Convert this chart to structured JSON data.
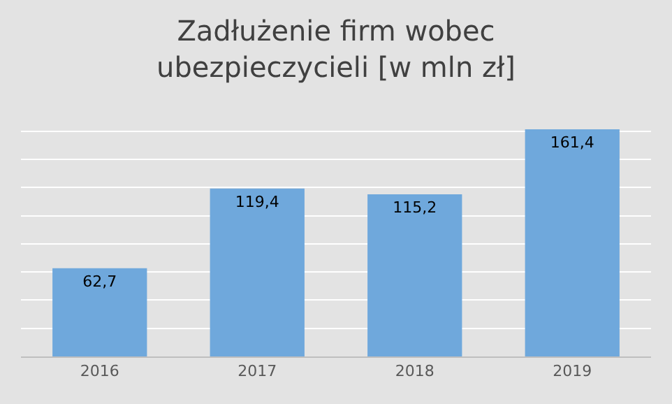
{
  "chart_data": {
    "type": "bar",
    "title": "Zadłużenie firm wobec\nubezpieczycieli [w mln zł]",
    "categories": [
      "2016",
      "2017",
      "2018",
      "2019"
    ],
    "values": [
      62.7,
      119.4,
      115.2,
      161.4
    ],
    "value_labels": [
      "62,7",
      "119,4",
      "115,2",
      "161,4"
    ],
    "color": "#6fa8dc",
    "grid": "y",
    "tick_labels": "x",
    "legend": false
  }
}
